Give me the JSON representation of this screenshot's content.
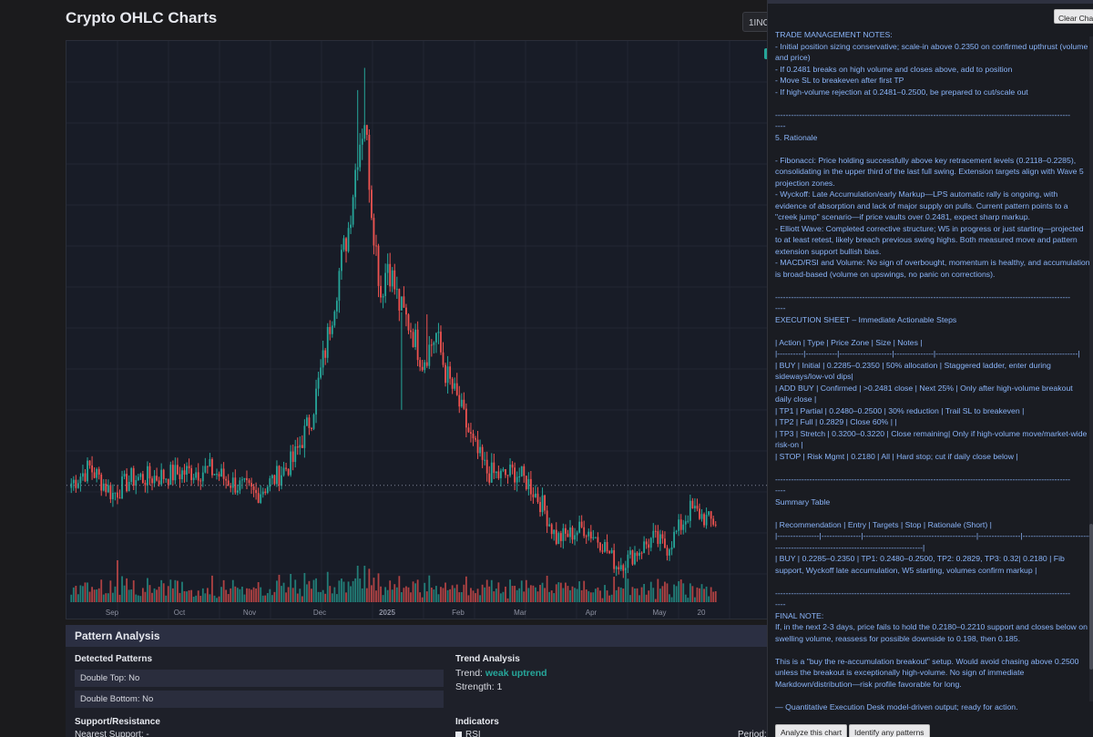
{
  "app": {
    "title": "Crypto OHLC Charts",
    "symbol_button": "1INC"
  },
  "chart_data": {
    "type": "candlestick",
    "x_ticks": [
      "Sep",
      "Oct",
      "Nov",
      "Dec",
      "2025",
      "Feb",
      "Mar",
      "Apr",
      "May",
      "20"
    ],
    "close_anchors": [
      [
        0,
        0.205
      ],
      [
        8,
        0.212
      ],
      [
        18,
        0.2
      ],
      [
        26,
        0.207
      ],
      [
        38,
        0.208
      ],
      [
        50,
        0.21
      ],
      [
        60,
        0.211
      ],
      [
        70,
        0.205
      ],
      [
        80,
        0.2
      ],
      [
        88,
        0.207
      ],
      [
        96,
        0.215
      ],
      [
        104,
        0.235
      ],
      [
        110,
        0.265
      ],
      [
        116,
        0.3
      ],
      [
        120,
        0.32
      ],
      [
        124,
        0.355
      ],
      [
        127,
        0.37
      ],
      [
        130,
        0.33
      ],
      [
        134,
        0.29
      ],
      [
        137,
        0.305
      ],
      [
        142,
        0.285
      ],
      [
        147,
        0.275
      ],
      [
        152,
        0.26
      ],
      [
        158,
        0.272
      ],
      [
        162,
        0.255
      ],
      [
        168,
        0.24
      ],
      [
        174,
        0.222
      ],
      [
        180,
        0.21
      ],
      [
        186,
        0.208
      ],
      [
        192,
        0.21
      ],
      [
        198,
        0.205
      ],
      [
        204,
        0.195
      ],
      [
        210,
        0.18
      ],
      [
        216,
        0.182
      ],
      [
        222,
        0.185
      ],
      [
        230,
        0.178
      ],
      [
        236,
        0.168
      ],
      [
        240,
        0.17
      ],
      [
        246,
        0.175
      ],
      [
        252,
        0.18
      ],
      [
        258,
        0.176
      ],
      [
        264,
        0.186
      ],
      [
        268,
        0.193
      ],
      [
        272,
        0.191
      ],
      [
        276,
        0.188
      ]
    ],
    "current_price_line": 0.204,
    "spikes": {
      "124": 0.382,
      "127": 0.392,
      "143": 0.238,
      "154": 0.281
    }
  },
  "pattern_analysis": {
    "title": "Pattern Analysis",
    "detected_title": "Detected Patterns",
    "double_top": "Double Top: No",
    "double_bottom": "Double Bottom: No",
    "trend_title": "Trend Analysis",
    "trend_label": "Trend: ",
    "trend_value": "weak uptrend",
    "strength": "Strength: 1",
    "sr_title": "Support/Resistance",
    "nearest_support": "Nearest Support: -",
    "indicators_title": "Indicators",
    "rsi": "RSI",
    "period": "Period:"
  },
  "side": {
    "clear_button": "Clear Chat",
    "analyze_button": "Analyze this chart",
    "identify_button": "Identify any patterns",
    "lines": [
      "TRADE MANAGEMENT NOTES:",
      "- Initial position sizing conservative; scale-in above 0.2350 on confirmed upthrust (volume and price)",
      "- If 0.2481 breaks on high volume and closes above, add to position",
      "- Move SL to breakeven after first TP",
      "- If high-volume rejection at 0.2481–0.2500, be prepared to cut/scale out",
      "",
      "----------------------------------------------------------------------------------------------------------------",
      "----",
      "5. Rationale",
      "",
      "- Fibonacci: Price holding successfully above key retracement levels (0.2118–0.2285), consolidating in the upper third of the last full swing. Extension targets align with Wave 5 projection zones.",
      "- Wyckoff: Late Accumulation/early Markup—LPS automatic rally is ongoing, with evidence of absorption and lack of major supply on pulls. Current pattern points to a \"creek jump\" scenario—if price vaults over 0.2481, expect sharp markup.",
      "- Elliott Wave: Completed corrective structure; W5 in progress or just starting—projected to at least retest, likely breach previous swing highs. Both measured move and pattern extension support bullish bias.",
      "- MACD/RSI and Volume: No sign of overbought, momentum is healthy, and accumulation is broad-based (volume on upswings, no panic on corrections).",
      "",
      "----------------------------------------------------------------------------------------------------------------",
      "----",
      "EXECUTION SHEET – Immediate Actionable Steps",
      "",
      "| Action | Type | Price Zone | Size | Notes |",
      "|----------|------------|--------------------|---------------|------------------------------------------------------|",
      "| BUY | Initial | 0.2285–0.2350 | 50% allocation | Staggered ladder, enter during sideways/low-vol dips|",
      "| ADD BUY | Confirmed | >0.2481 close | Next 25% | Only after high-volume breakout daily close |",
      "| TP1 | Partial | 0.2480–0.2500 | 30% reduction | Trail SL to breakeven |",
      "| TP2 | Full | 0.2829 | Close 60% | |",
      "| TP3 | Stretch | 0.3200–0.3220 | Close remaining| Only if high-volume move/market-wide risk-on |",
      "| STOP | Risk Mgmt | 0.2180 | All | Hard stop; cut if daily close below |",
      "",
      "----------------------------------------------------------------------------------------------------------------",
      "----",
      "Summary Table",
      "",
      "| Recommendation | Entry | Targets | Stop | Rationale (Short) |",
      "|----------------|---------------|-------------------------------------------|----------------|-------------------------------------",
      "--------------------------------------------------------|",
      "| BUY | 0.2285–0.2350 | TP1: 0.2480–0.2500, TP2: 0.2829, TP3: 0.32| 0.2180 | Fib support, Wyckoff late accumulation, W5 starting, volumes confirm markup |",
      "",
      "----------------------------------------------------------------------------------------------------------------",
      "----",
      "FINAL NOTE:",
      "If, in the next 2-3 days, price fails to hold the 0.2180–0.2210 support and closes below on swelling volume, reassess for possible downside to 0.198, then 0.185.",
      "",
      "This is a \"buy the re-accumulation breakout\" setup. Would avoid chasing above 0.2500 unless the breakout is exceptionally high-volume. No sign of immediate Markdown/distribution—risk profile favorable for long.",
      "",
      "— Quantitative Execution Desk model-driven output; ready for action."
    ]
  },
  "colors": {
    "up": "#26a69a",
    "down": "#ef5350",
    "notes": "#8ab4f8",
    "panel_header": "#2b2f42"
  }
}
